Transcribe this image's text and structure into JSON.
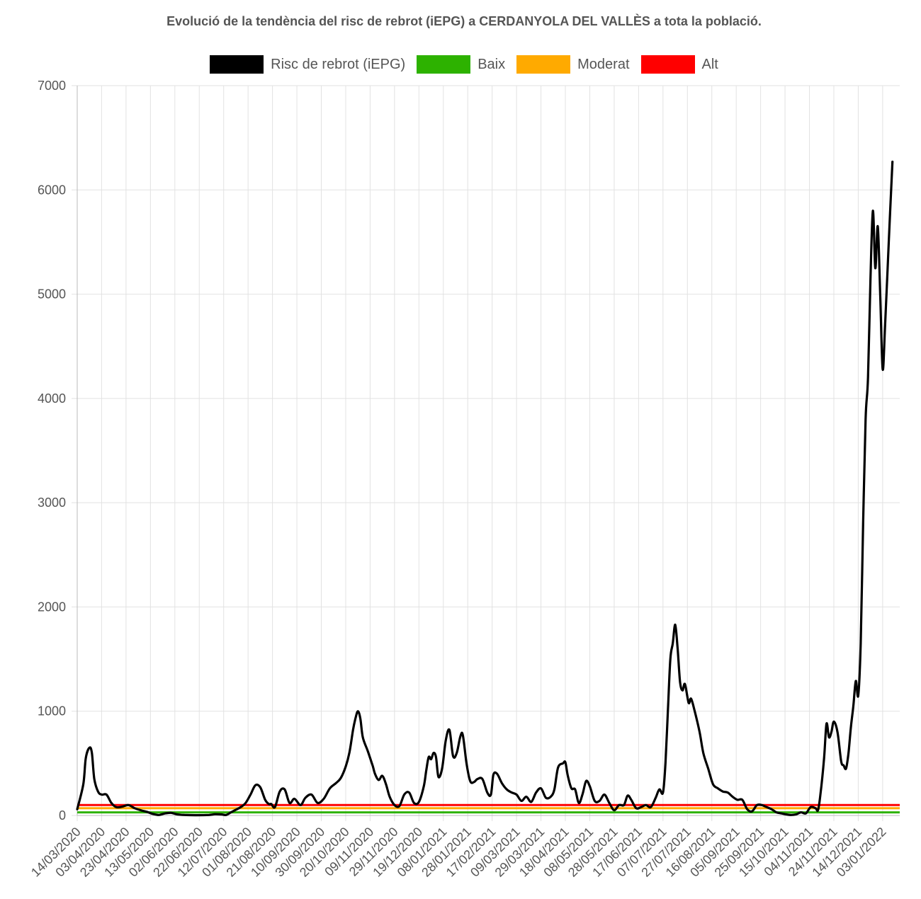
{
  "chart_data": {
    "type": "line",
    "title": "Evolució de la tendència del risc de rebrot (iEPG) a CERDANYOLA DEL VALLÈS a tota la població.",
    "xlabel": "",
    "ylabel": "",
    "ylim": [
      0,
      7000
    ],
    "yticks": [
      0,
      1000,
      2000,
      3000,
      4000,
      5000,
      6000,
      7000
    ],
    "x_start": "14/03/2020",
    "x_end": "17/01/2022",
    "x_step_days": 20,
    "xtick_labels": [
      "14/03/2020",
      "03/04/2020",
      "23/04/2020",
      "13/05/2020",
      "02/06/2020",
      "22/06/2020",
      "12/07/2020",
      "01/08/2020",
      "21/08/2020",
      "10/09/2020",
      "30/09/2020",
      "20/10/2020",
      "09/11/2020",
      "29/11/2020",
      "19/12/2020",
      "08/01/2021",
      "28/01/2021",
      "17/02/2021",
      "09/03/2021",
      "29/03/2021",
      "18/04/2021",
      "08/05/2021",
      "28/05/2021",
      "17/06/2021",
      "07/07/2021",
      "27/07/2021",
      "16/08/2021",
      "05/09/2021",
      "25/09/2021",
      "15/10/2021",
      "04/11/2021",
      "24/11/2021",
      "14/12/2021",
      "03/01/2022"
    ],
    "grid": true,
    "legend_position": "top",
    "series": [
      {
        "name": "Risc de rebrot (iEPG)",
        "color": "#000000",
        "points": [
          [
            "14/03/2020",
            60
          ],
          [
            "19/03/2020",
            300
          ],
          [
            "21/03/2020",
            550
          ],
          [
            "24/03/2020",
            650
          ],
          [
            "26/03/2020",
            600
          ],
          [
            "28/03/2020",
            350
          ],
          [
            "31/03/2020",
            230
          ],
          [
            "03/04/2020",
            200
          ],
          [
            "07/04/2020",
            200
          ],
          [
            "11/04/2020",
            120
          ],
          [
            "15/04/2020",
            80
          ],
          [
            "20/04/2020",
            85
          ],
          [
            "25/04/2020",
            100
          ],
          [
            "30/04/2020",
            70
          ],
          [
            "05/05/2020",
            50
          ],
          [
            "10/05/2020",
            35
          ],
          [
            "15/05/2020",
            15
          ],
          [
            "20/05/2020",
            5
          ],
          [
            "25/05/2020",
            20
          ],
          [
            "30/05/2020",
            25
          ],
          [
            "04/06/2020",
            10
          ],
          [
            "10/06/2020",
            5
          ],
          [
            "20/06/2020",
            3
          ],
          [
            "30/06/2020",
            5
          ],
          [
            "05/07/2020",
            12
          ],
          [
            "10/07/2020",
            10
          ],
          [
            "14/07/2020",
            5
          ],
          [
            "18/07/2020",
            30
          ],
          [
            "22/07/2020",
            55
          ],
          [
            "26/07/2020",
            80
          ],
          [
            "30/07/2020",
            120
          ],
          [
            "03/08/2020",
            200
          ],
          [
            "07/08/2020",
            290
          ],
          [
            "11/08/2020",
            270
          ],
          [
            "15/08/2020",
            150
          ],
          [
            "18/08/2020",
            110
          ],
          [
            "20/08/2020",
            110
          ],
          [
            "23/08/2020",
            80
          ],
          [
            "27/08/2020",
            230
          ],
          [
            "31/08/2020",
            250
          ],
          [
            "04/09/2020",
            120
          ],
          [
            "08/09/2020",
            160
          ],
          [
            "13/09/2020",
            100
          ],
          [
            "17/09/2020",
            170
          ],
          [
            "22/09/2020",
            200
          ],
          [
            "27/09/2020",
            120
          ],
          [
            "02/10/2020",
            160
          ],
          [
            "07/10/2020",
            260
          ],
          [
            "12/10/2020",
            310
          ],
          [
            "16/10/2020",
            360
          ],
          [
            "20/10/2020",
            470
          ],
          [
            "23/10/2020",
            600
          ],
          [
            "26/10/2020",
            820
          ],
          [
            "28/10/2020",
            930
          ],
          [
            "30/10/2020",
            1000
          ],
          [
            "01/11/2020",
            930
          ],
          [
            "03/11/2020",
            750
          ],
          [
            "07/11/2020",
            620
          ],
          [
            "11/11/2020",
            480
          ],
          [
            "13/11/2020",
            400
          ],
          [
            "16/11/2020",
            340
          ],
          [
            "19/11/2020",
            380
          ],
          [
            "22/11/2020",
            300
          ],
          [
            "25/11/2020",
            180
          ],
          [
            "29/11/2020",
            100
          ],
          [
            "03/12/2020",
            90
          ],
          [
            "07/12/2020",
            200
          ],
          [
            "11/12/2020",
            220
          ],
          [
            "15/12/2020",
            120
          ],
          [
            "19/12/2020",
            130
          ],
          [
            "23/12/2020",
            280
          ],
          [
            "25/12/2020",
            430
          ],
          [
            "27/12/2020",
            560
          ],
          [
            "29/12/2020",
            540
          ],
          [
            "31/12/2020",
            600
          ],
          [
            "02/01/2021",
            560
          ],
          [
            "04/01/2021",
            370
          ],
          [
            "07/01/2021",
            450
          ],
          [
            "10/01/2021",
            720
          ],
          [
            "13/01/2021",
            820
          ],
          [
            "16/01/2021",
            570
          ],
          [
            "19/01/2021",
            600
          ],
          [
            "22/01/2021",
            760
          ],
          [
            "24/01/2021",
            770
          ],
          [
            "27/01/2021",
            500
          ],
          [
            "30/01/2021",
            330
          ],
          [
            "02/02/2021",
            320
          ],
          [
            "05/02/2021",
            350
          ],
          [
            "09/02/2021",
            350
          ],
          [
            "13/02/2021",
            220
          ],
          [
            "16/02/2021",
            200
          ],
          [
            "18/02/2021",
            390
          ],
          [
            "21/02/2021",
            400
          ],
          [
            "25/02/2021",
            310
          ],
          [
            "01/03/2021",
            250
          ],
          [
            "05/03/2021",
            220
          ],
          [
            "09/03/2021",
            200
          ],
          [
            "13/03/2021",
            140
          ],
          [
            "17/03/2021",
            180
          ],
          [
            "21/03/2021",
            130
          ],
          [
            "25/03/2021",
            220
          ],
          [
            "29/03/2021",
            260
          ],
          [
            "02/04/2021",
            170
          ],
          [
            "06/04/2021",
            180
          ],
          [
            "09/04/2021",
            250
          ],
          [
            "12/04/2021",
            460
          ],
          [
            "16/04/2021",
            500
          ],
          [
            "18/04/2021",
            510
          ],
          [
            "20/04/2021",
            380
          ],
          [
            "23/04/2021",
            260
          ],
          [
            "26/04/2021",
            250
          ],
          [
            "29/04/2021",
            120
          ],
          [
            "02/05/2021",
            200
          ],
          [
            "05/05/2021",
            330
          ],
          [
            "08/05/2021",
            280
          ],
          [
            "12/05/2021",
            140
          ],
          [
            "16/05/2021",
            140
          ],
          [
            "20/05/2021",
            200
          ],
          [
            "24/05/2021",
            120
          ],
          [
            "28/05/2021",
            50
          ],
          [
            "01/06/2021",
            100
          ],
          [
            "05/06/2021",
            100
          ],
          [
            "08/06/2021",
            190
          ],
          [
            "11/06/2021",
            150
          ],
          [
            "15/06/2021",
            70
          ],
          [
            "19/06/2021",
            80
          ],
          [
            "23/06/2021",
            100
          ],
          [
            "27/06/2021",
            80
          ],
          [
            "01/07/2021",
            170
          ],
          [
            "04/07/2021",
            250
          ],
          [
            "07/07/2021",
            220
          ],
          [
            "09/07/2021",
            500
          ],
          [
            "11/07/2021",
            1000
          ],
          [
            "13/07/2021",
            1500
          ],
          [
            "15/07/2021",
            1650
          ],
          [
            "17/07/2021",
            1830
          ],
          [
            "19/07/2021",
            1600
          ],
          [
            "21/07/2021",
            1280
          ],
          [
            "23/07/2021",
            1200
          ],
          [
            "25/07/2021",
            1260
          ],
          [
            "28/07/2021",
            1080
          ],
          [
            "30/07/2021",
            1120
          ],
          [
            "02/08/2021",
            1000
          ],
          [
            "06/08/2021",
            800
          ],
          [
            "09/08/2021",
            600
          ],
          [
            "13/08/2021",
            450
          ],
          [
            "17/08/2021",
            300
          ],
          [
            "21/08/2021",
            260
          ],
          [
            "25/08/2021",
            230
          ],
          [
            "29/08/2021",
            220
          ],
          [
            "02/09/2021",
            180
          ],
          [
            "06/09/2021",
            150
          ],
          [
            "10/09/2021",
            150
          ],
          [
            "14/09/2021",
            60
          ],
          [
            "18/09/2021",
            40
          ],
          [
            "22/09/2021",
            100
          ],
          [
            "26/09/2021",
            100
          ],
          [
            "30/09/2021",
            80
          ],
          [
            "04/10/2021",
            60
          ],
          [
            "08/10/2021",
            30
          ],
          [
            "12/10/2021",
            20
          ],
          [
            "16/10/2021",
            10
          ],
          [
            "20/10/2021",
            5
          ],
          [
            "24/10/2021",
            10
          ],
          [
            "28/10/2021",
            30
          ],
          [
            "01/11/2021",
            20
          ],
          [
            "05/11/2021",
            80
          ],
          [
            "09/11/2021",
            70
          ],
          [
            "11/11/2021",
            50
          ],
          [
            "13/11/2021",
            200
          ],
          [
            "16/11/2021",
            550
          ],
          [
            "18/11/2021",
            880
          ],
          [
            "20/11/2021",
            750
          ],
          [
            "22/11/2021",
            800
          ],
          [
            "24/11/2021",
            900
          ],
          [
            "27/11/2021",
            800
          ],
          [
            "30/11/2021",
            520
          ],
          [
            "02/12/2021",
            480
          ],
          [
            "04/12/2021",
            450
          ],
          [
            "06/12/2021",
            600
          ],
          [
            "08/12/2021",
            850
          ],
          [
            "10/12/2021",
            1050
          ],
          [
            "12/12/2021",
            1290
          ],
          [
            "14/12/2021",
            1150
          ],
          [
            "16/12/2021",
            1650
          ],
          [
            "18/12/2021",
            2800
          ],
          [
            "20/12/2021",
            3800
          ],
          [
            "22/12/2021",
            4200
          ],
          [
            "24/12/2021",
            5150
          ],
          [
            "26/12/2021",
            5800
          ],
          [
            "28/12/2021",
            5250
          ],
          [
            "30/12/2021",
            5650
          ],
          [
            "01/01/2022",
            5000
          ],
          [
            "03/01/2022",
            4280
          ],
          [
            "05/01/2022",
            4700
          ],
          [
            "08/01/2022",
            5500
          ],
          [
            "11/01/2022",
            6270
          ]
        ]
      },
      {
        "name": "Baix",
        "color": "#2db200",
        "value": 30
      },
      {
        "name": "Moderat",
        "color": "#ffaa00",
        "value": 70
      },
      {
        "name": "Alt",
        "color": "#ff0000",
        "value": 100
      }
    ]
  }
}
